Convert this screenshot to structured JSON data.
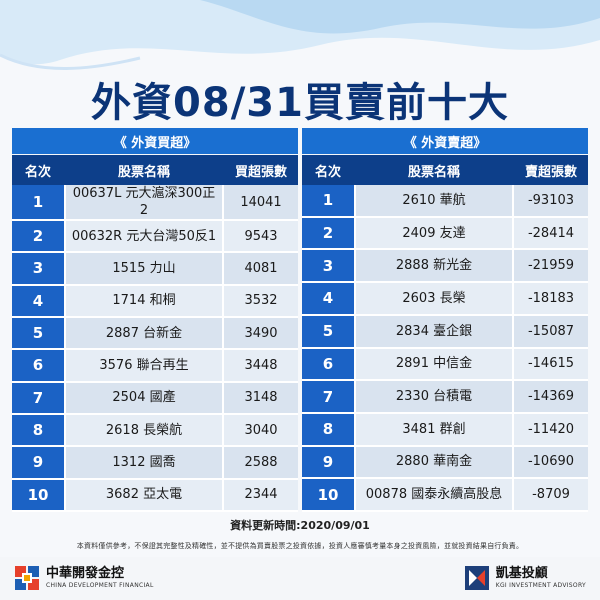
{
  "title": "外資08/31買賣前十大",
  "buy_table": {
    "title": "《 外資買超》",
    "headers": [
      "名次",
      "股票名稱",
      "買超張數"
    ],
    "rows": [
      {
        "rank": "1",
        "name": "00637L 元大滬深300正2",
        "value": "14041"
      },
      {
        "rank": "2",
        "name": "00632R 元大台灣50反1",
        "value": "9543"
      },
      {
        "rank": "3",
        "name": "1515 力山",
        "value": "4081"
      },
      {
        "rank": "4",
        "name": "1714 和桐",
        "value": "3532"
      },
      {
        "rank": "5",
        "name": "2887 台新金",
        "value": "3490"
      },
      {
        "rank": "6",
        "name": "3576 聯合再生",
        "value": "3448"
      },
      {
        "rank": "7",
        "name": "2504 國產",
        "value": "3148"
      },
      {
        "rank": "8",
        "name": "2618 長榮航",
        "value": "3040"
      },
      {
        "rank": "9",
        "name": "1312 國喬",
        "value": "2588"
      },
      {
        "rank": "10",
        "name": "3682 亞太電",
        "value": "2344"
      }
    ]
  },
  "sell_table": {
    "title": "《 外資賣超》",
    "headers": [
      "名次",
      "股票名稱",
      "賣超張數"
    ],
    "rows": [
      {
        "rank": "1",
        "name": "2610 華航",
        "value": "-93103"
      },
      {
        "rank": "2",
        "name": "2409 友達",
        "value": "-28414"
      },
      {
        "rank": "3",
        "name": "2888 新光金",
        "value": "-21959"
      },
      {
        "rank": "4",
        "name": "2603 長榮",
        "value": "-18183"
      },
      {
        "rank": "5",
        "name": "2834 臺企銀",
        "value": "-15087"
      },
      {
        "rank": "6",
        "name": "2891 中信金",
        "value": "-14615"
      },
      {
        "rank": "7",
        "name": "2330 台積電",
        "value": "-14369"
      },
      {
        "rank": "8",
        "name": "3481 群創",
        "value": "-11420"
      },
      {
        "rank": "9",
        "name": "2880 華南金",
        "value": "-10690"
      },
      {
        "rank": "10",
        "name": "00878 國泰永續高股息",
        "value": "-8709"
      }
    ]
  },
  "update_time": "資料更新時間:2020/09/01",
  "disclaimer": "本資料僅供參考，不保證其完整性及精確性，並不提供為買賣股票之投資依據，投資人應審慎考量本身之投資風險，並就投資結果自行負責。",
  "footer": {
    "left_logo": {
      "name": "中華開發金控",
      "sub": "CHINA DEVELOPMENT FINANCIAL"
    },
    "right_logo": {
      "name": "凱基投顧",
      "sub": "KGI INVESTMENT ADVISORY"
    }
  },
  "colors": {
    "title": "#0b3477",
    "table_title_bg": "#1a6fd1",
    "header_bg": "#0d3f8a",
    "rank_bg": "#1b62c5",
    "cell_bg": "#d9e3ef"
  }
}
